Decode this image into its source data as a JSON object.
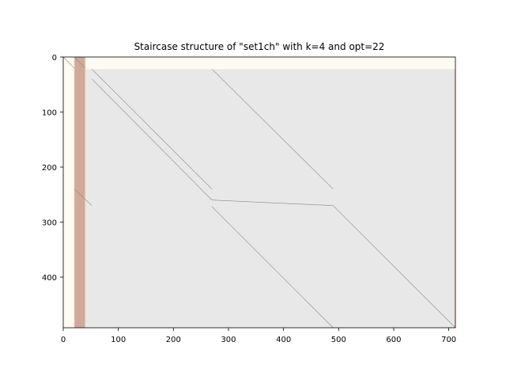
{
  "chart_data": {
    "type": "heatmap",
    "title": "Staircase structure of \"set1ch\" with k=4 and opt=22",
    "xlim": [
      0,
      712
    ],
    "ylim": [
      492,
      0
    ],
    "x_ticks": [
      0,
      100,
      200,
      300,
      400,
      500,
      600,
      700
    ],
    "y_ticks": [
      0,
      100,
      200,
      300,
      400
    ],
    "grid": false,
    "legend": "none",
    "colors": {
      "light_region": "#fffaf2",
      "main_block": "#e8e8e8",
      "band": "#d2a898",
      "band_edge": "#f0d8c8",
      "line": "#8a8a8a"
    },
    "regions": [
      {
        "name": "upper-rows",
        "x": [
          0,
          712
        ],
        "y": [
          0,
          22
        ],
        "color": "light_region"
      },
      {
        "name": "main-block",
        "x": [
          40,
          712
        ],
        "y": [
          22,
          492
        ],
        "color": "main_block"
      },
      {
        "name": "left-light-column",
        "x": [
          0,
          20
        ],
        "y": [
          22,
          492
        ],
        "color": "light_region"
      },
      {
        "name": "column-band",
        "x": [
          20,
          40
        ],
        "y": [
          0,
          492
        ],
        "color": "band"
      }
    ],
    "segments": [
      {
        "x": [
          0,
          20
        ],
        "y": [
          0,
          20
        ]
      },
      {
        "x": [
          20,
          40
        ],
        "y": [
          0,
          20
        ]
      },
      {
        "x": [
          52,
          270
        ],
        "y": [
          22,
          240
        ]
      },
      {
        "x": [
          52,
          270
        ],
        "y": [
          40,
          260
        ]
      },
      {
        "x": [
          270,
          490
        ],
        "y": [
          22,
          240
        ]
      },
      {
        "x": [
          20,
          52
        ],
        "y": [
          240,
          270
        ]
      },
      {
        "x": [
          270,
          490
        ],
        "y": [
          260,
          270
        ]
      },
      {
        "x": [
          270,
          490
        ],
        "y": [
          272,
          492
        ]
      },
      {
        "x": [
          490,
          712
        ],
        "y": [
          270,
          492
        ]
      }
    ]
  }
}
